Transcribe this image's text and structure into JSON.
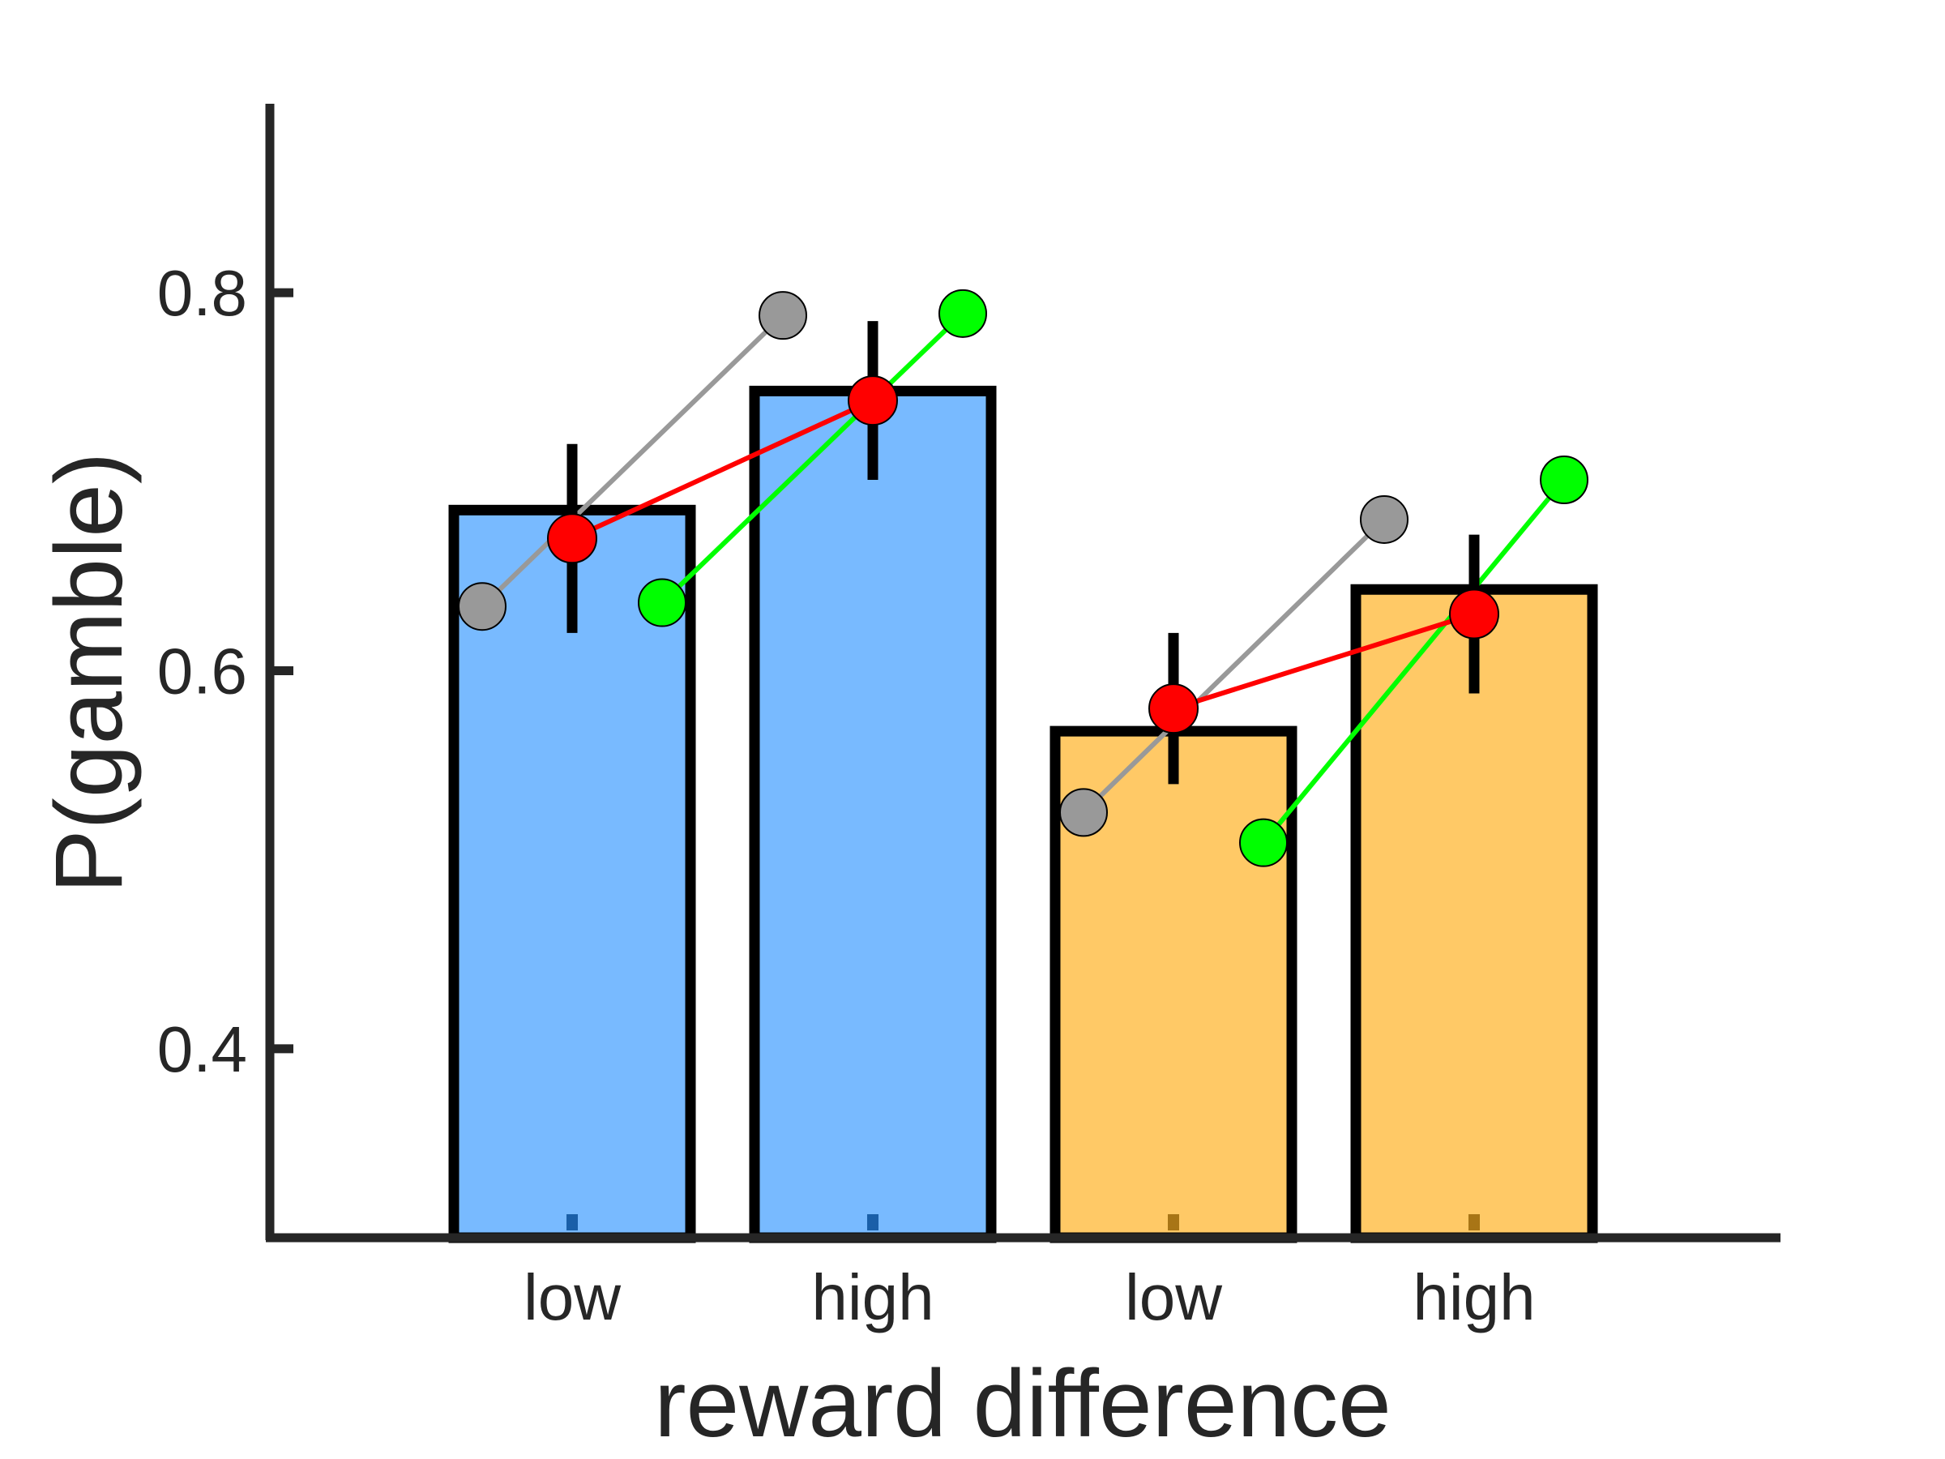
{
  "chart_data": {
    "type": "bar",
    "categories": [
      "low",
      "high",
      "low",
      "high"
    ],
    "xlabel": "reward difference",
    "ylabel": "P(gamble)",
    "ylim": [
      0.3,
      0.9
    ],
    "yticks": [
      "0.4",
      "0.6",
      "0.8"
    ],
    "grid": false,
    "bars": {
      "values": [
        0.685,
        0.748,
        0.568,
        0.643
      ],
      "colors": [
        "#78baff",
        "#78baff",
        "#ffc966",
        "#ffc966"
      ]
    },
    "mean_series": {
      "color": "#ff0000",
      "groups": [
        {
          "values": [
            0.67,
            0.743
          ],
          "errors": [
            0.05,
            0.042
          ]
        },
        {
          "values": [
            0.58,
            0.63
          ],
          "errors": [
            0.04,
            0.042
          ]
        }
      ]
    },
    "model_series": [
      {
        "color": "#999999",
        "groups": [
          [
            0.634,
            0.788
          ],
          [
            0.525,
            0.68
          ]
        ]
      },
      {
        "color": "#00ff00",
        "groups": [
          [
            0.636,
            0.789
          ],
          [
            0.509,
            0.701
          ]
        ]
      }
    ]
  }
}
